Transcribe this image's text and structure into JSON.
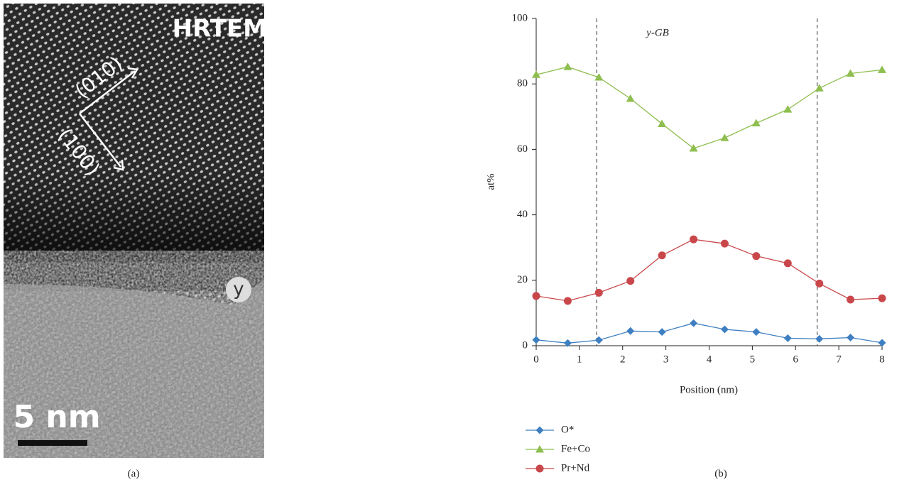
{
  "image": {
    "label": "HRTEM",
    "direction_1": "(010)",
    "direction_2": "(100)",
    "marker": "y",
    "scale_bar": "5 nm",
    "caption": "(a)"
  },
  "chart_data": {
    "type": "line",
    "caption": "(b)",
    "x_label": "Position (nm)",
    "y_label": "at%",
    "annotation": "y-GB",
    "x": [
      0,
      0.73,
      1.45,
      2.18,
      2.91,
      3.64,
      4.36,
      5.09,
      5.82,
      6.55,
      7.27,
      8
    ],
    "series": [
      {
        "name": "O*",
        "color": "#3e7fc1",
        "marker": "diamond",
        "values": [
          1.8,
          0.8,
          1.7,
          4.5,
          4.2,
          6.9,
          5.0,
          4.2,
          2.3,
          2.1,
          2.5,
          0.9
        ]
      },
      {
        "name": "Fe+Co",
        "color": "#8fbe4f",
        "marker": "triangle",
        "values": [
          82.8,
          85.2,
          82.0,
          75.5,
          67.8,
          60.3,
          63.5,
          68.0,
          72.2,
          78.7,
          83.2,
          84.3
        ]
      },
      {
        "name": "Pr+Nd",
        "color": "#c9474a",
        "marker": "circle",
        "values": [
          15.2,
          13.7,
          16.2,
          19.8,
          27.6,
          32.5,
          31.2,
          27.4,
          25.2,
          19.0,
          14.1,
          14.5
        ]
      }
    ],
    "vlines": [
      1.4,
      6.5
    ],
    "xlim": [
      0,
      8
    ],
    "xticks": [
      0,
      1,
      2,
      3,
      4,
      5,
      6,
      7,
      8
    ],
    "ylim": [
      0,
      100
    ],
    "yticks": [
      0,
      20,
      40,
      60,
      80,
      100
    ]
  }
}
